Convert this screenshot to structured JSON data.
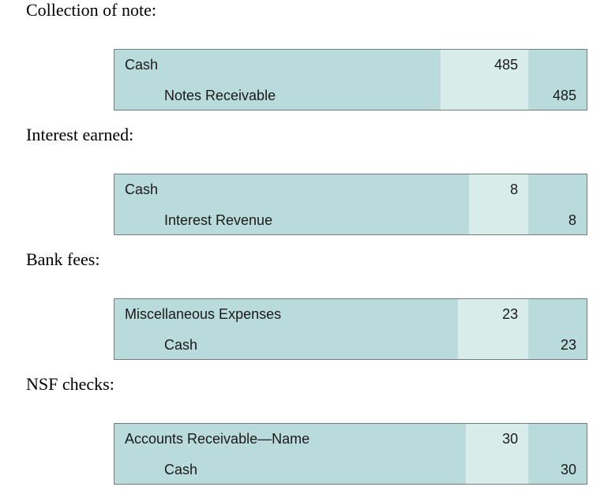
{
  "entries": [
    {
      "heading": "Collection of note:",
      "debit_account": "Cash",
      "credit_account": "Notes Receivable",
      "debit_amount": "485",
      "credit_amount": "485"
    },
    {
      "heading": "Interest earned:",
      "debit_account": "Cash",
      "credit_account": "Interest Revenue",
      "debit_amount": "8",
      "credit_amount": "8"
    },
    {
      "heading": "Bank fees:",
      "debit_account": "Miscellaneous Expenses",
      "credit_account": "Cash",
      "debit_amount": "23",
      "credit_amount": "23"
    },
    {
      "heading": "NSF checks:",
      "debit_account": "Accounts Receivable—Name",
      "credit_account": "Cash",
      "debit_amount": "30",
      "credit_amount": "30"
    }
  ],
  "colors": {
    "account_column": "#badbdb",
    "debit_column": "#d8edea",
    "credit_column": "#badbdb",
    "border": "#6f7f7f"
  }
}
